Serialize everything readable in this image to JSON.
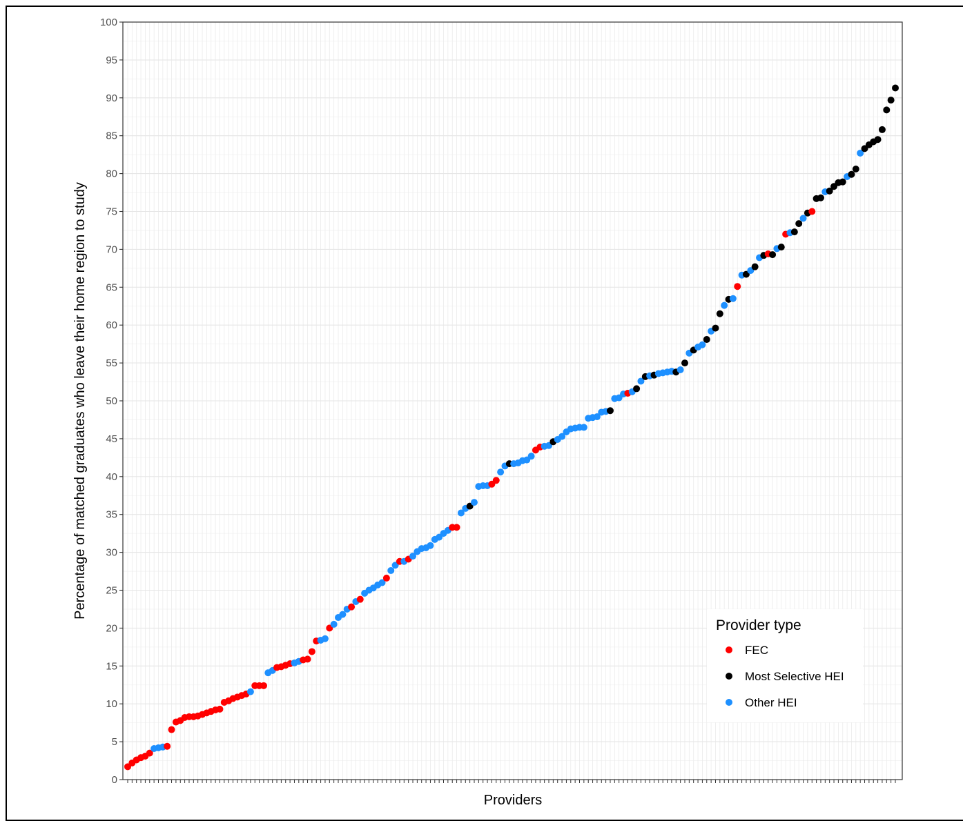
{
  "chart_data": {
    "type": "scatter",
    "title": "",
    "xlabel": "Providers",
    "ylabel": "Percentage of matched graduates who leave their home region to study",
    "ylim": [
      0,
      100
    ],
    "yticks": [
      0,
      5,
      10,
      15,
      20,
      25,
      30,
      35,
      40,
      45,
      50,
      55,
      60,
      65,
      70,
      75,
      80,
      85,
      90,
      95,
      100
    ],
    "grid": true,
    "legend": {
      "title": "Provider type",
      "position": "bottom-right",
      "entries": [
        {
          "label": "FEC",
          "color": "#ff0000"
        },
        {
          "label": "Most Selective HEI",
          "color": "#000000"
        },
        {
          "label": "Other HEI",
          "color": "#1e90ff"
        }
      ]
    },
    "series_types": [
      "FEC",
      "Most Selective HEI",
      "Other HEI"
    ],
    "points": [
      {
        "t": 0,
        "y": 1.7
      },
      {
        "t": 0,
        "y": 2.2
      },
      {
        "t": 0,
        "y": 2.6
      },
      {
        "t": 0,
        "y": 2.9
      },
      {
        "t": 0,
        "y": 3.1
      },
      {
        "t": 0,
        "y": 3.5
      },
      {
        "t": 2,
        "y": 4.1
      },
      {
        "t": 2,
        "y": 4.2
      },
      {
        "t": 2,
        "y": 4.3
      },
      {
        "t": 0,
        "y": 4.4
      },
      {
        "t": 0,
        "y": 6.6
      },
      {
        "t": 0,
        "y": 7.6
      },
      {
        "t": 0,
        "y": 7.8
      },
      {
        "t": 0,
        "y": 8.2
      },
      {
        "t": 0,
        "y": 8.3
      },
      {
        "t": 0,
        "y": 8.3
      },
      {
        "t": 0,
        "y": 8.4
      },
      {
        "t": 0,
        "y": 8.6
      },
      {
        "t": 0,
        "y": 8.8
      },
      {
        "t": 0,
        "y": 9.0
      },
      {
        "t": 0,
        "y": 9.2
      },
      {
        "t": 0,
        "y": 9.3
      },
      {
        "t": 0,
        "y": 10.2
      },
      {
        "t": 0,
        "y": 10.4
      },
      {
        "t": 0,
        "y": 10.7
      },
      {
        "t": 0,
        "y": 10.9
      },
      {
        "t": 0,
        "y": 11.1
      },
      {
        "t": 0,
        "y": 11.3
      },
      {
        "t": 2,
        "y": 11.6
      },
      {
        "t": 0,
        "y": 12.4
      },
      {
        "t": 0,
        "y": 12.4
      },
      {
        "t": 0,
        "y": 12.4
      },
      {
        "t": 2,
        "y": 14.1
      },
      {
        "t": 2,
        "y": 14.4
      },
      {
        "t": 0,
        "y": 14.8
      },
      {
        "t": 0,
        "y": 14.9
      },
      {
        "t": 0,
        "y": 15.1
      },
      {
        "t": 0,
        "y": 15.3
      },
      {
        "t": 2,
        "y": 15.4
      },
      {
        "t": 2,
        "y": 15.6
      },
      {
        "t": 0,
        "y": 15.8
      },
      {
        "t": 0,
        "y": 15.9
      },
      {
        "t": 0,
        "y": 16.9
      },
      {
        "t": 0,
        "y": 18.3
      },
      {
        "t": 2,
        "y": 18.4
      },
      {
        "t": 2,
        "y": 18.6
      },
      {
        "t": 0,
        "y": 20.0
      },
      {
        "t": 2,
        "y": 20.5
      },
      {
        "t": 2,
        "y": 21.4
      },
      {
        "t": 2,
        "y": 21.8
      },
      {
        "t": 2,
        "y": 22.5
      },
      {
        "t": 0,
        "y": 22.8
      },
      {
        "t": 2,
        "y": 23.5
      },
      {
        "t": 0,
        "y": 23.8
      },
      {
        "t": 2,
        "y": 24.6
      },
      {
        "t": 2,
        "y": 25.0
      },
      {
        "t": 2,
        "y": 25.3
      },
      {
        "t": 2,
        "y": 25.7
      },
      {
        "t": 2,
        "y": 26.0
      },
      {
        "t": 0,
        "y": 26.6
      },
      {
        "t": 2,
        "y": 27.6
      },
      {
        "t": 2,
        "y": 28.3
      },
      {
        "t": 0,
        "y": 28.8
      },
      {
        "t": 2,
        "y": 28.8
      },
      {
        "t": 0,
        "y": 29.1
      },
      {
        "t": 2,
        "y": 29.5
      },
      {
        "t": 2,
        "y": 30.1
      },
      {
        "t": 2,
        "y": 30.5
      },
      {
        "t": 2,
        "y": 30.6
      },
      {
        "t": 2,
        "y": 30.9
      },
      {
        "t": 2,
        "y": 31.7
      },
      {
        "t": 2,
        "y": 32.0
      },
      {
        "t": 2,
        "y": 32.5
      },
      {
        "t": 2,
        "y": 32.9
      },
      {
        "t": 0,
        "y": 33.3
      },
      {
        "t": 0,
        "y": 33.3
      },
      {
        "t": 2,
        "y": 35.2
      },
      {
        "t": 2,
        "y": 35.8
      },
      {
        "t": 1,
        "y": 36.1
      },
      {
        "t": 2,
        "y": 36.6
      },
      {
        "t": 2,
        "y": 38.7
      },
      {
        "t": 2,
        "y": 38.8
      },
      {
        "t": 2,
        "y": 38.8
      },
      {
        "t": 0,
        "y": 39.0
      },
      {
        "t": 0,
        "y": 39.5
      },
      {
        "t": 2,
        "y": 40.6
      },
      {
        "t": 2,
        "y": 41.4
      },
      {
        "t": 1,
        "y": 41.7
      },
      {
        "t": 2,
        "y": 41.7
      },
      {
        "t": 2,
        "y": 41.8
      },
      {
        "t": 2,
        "y": 42.1
      },
      {
        "t": 2,
        "y": 42.2
      },
      {
        "t": 2,
        "y": 42.7
      },
      {
        "t": 0,
        "y": 43.5
      },
      {
        "t": 0,
        "y": 43.9
      },
      {
        "t": 2,
        "y": 44.0
      },
      {
        "t": 2,
        "y": 44.1
      },
      {
        "t": 1,
        "y": 44.6
      },
      {
        "t": 2,
        "y": 44.9
      },
      {
        "t": 2,
        "y": 45.3
      },
      {
        "t": 2,
        "y": 45.9
      },
      {
        "t": 2,
        "y": 46.3
      },
      {
        "t": 2,
        "y": 46.4
      },
      {
        "t": 2,
        "y": 46.5
      },
      {
        "t": 2,
        "y": 46.5
      },
      {
        "t": 2,
        "y": 47.7
      },
      {
        "t": 2,
        "y": 47.8
      },
      {
        "t": 2,
        "y": 47.9
      },
      {
        "t": 2,
        "y": 48.5
      },
      {
        "t": 2,
        "y": 48.6
      },
      {
        "t": 1,
        "y": 48.7
      },
      {
        "t": 2,
        "y": 50.3
      },
      {
        "t": 2,
        "y": 50.4
      },
      {
        "t": 2,
        "y": 50.9
      },
      {
        "t": 0,
        "y": 51.0
      },
      {
        "t": 2,
        "y": 51.2
      },
      {
        "t": 1,
        "y": 51.6
      },
      {
        "t": 2,
        "y": 52.6
      },
      {
        "t": 1,
        "y": 53.2
      },
      {
        "t": 2,
        "y": 53.3
      },
      {
        "t": 1,
        "y": 53.4
      },
      {
        "t": 2,
        "y": 53.6
      },
      {
        "t": 2,
        "y": 53.7
      },
      {
        "t": 2,
        "y": 53.8
      },
      {
        "t": 2,
        "y": 53.9
      },
      {
        "t": 1,
        "y": 53.8
      },
      {
        "t": 2,
        "y": 54.1
      },
      {
        "t": 1,
        "y": 55.0
      },
      {
        "t": 2,
        "y": 56.3
      },
      {
        "t": 1,
        "y": 56.7
      },
      {
        "t": 2,
        "y": 57.1
      },
      {
        "t": 2,
        "y": 57.4
      },
      {
        "t": 1,
        "y": 58.1
      },
      {
        "t": 2,
        "y": 59.2
      },
      {
        "t": 1,
        "y": 59.6
      },
      {
        "t": 1,
        "y": 61.5
      },
      {
        "t": 2,
        "y": 62.6
      },
      {
        "t": 1,
        "y": 63.4
      },
      {
        "t": 2,
        "y": 63.5
      },
      {
        "t": 0,
        "y": 65.1
      },
      {
        "t": 2,
        "y": 66.6
      },
      {
        "t": 1,
        "y": 66.7
      },
      {
        "t": 2,
        "y": 67.2
      },
      {
        "t": 1,
        "y": 67.7
      },
      {
        "t": 2,
        "y": 68.9
      },
      {
        "t": 1,
        "y": 69.2
      },
      {
        "t": 0,
        "y": 69.4
      },
      {
        "t": 1,
        "y": 69.3
      },
      {
        "t": 2,
        "y": 70.1
      },
      {
        "t": 1,
        "y": 70.3
      },
      {
        "t": 0,
        "y": 72.0
      },
      {
        "t": 2,
        "y": 72.2
      },
      {
        "t": 1,
        "y": 72.3
      },
      {
        "t": 1,
        "y": 73.4
      },
      {
        "t": 2,
        "y": 74.1
      },
      {
        "t": 1,
        "y": 74.8
      },
      {
        "t": 0,
        "y": 75.0
      },
      {
        "t": 1,
        "y": 76.7
      },
      {
        "t": 1,
        "y": 76.8
      },
      {
        "t": 2,
        "y": 77.6
      },
      {
        "t": 1,
        "y": 77.7
      },
      {
        "t": 1,
        "y": 78.3
      },
      {
        "t": 1,
        "y": 78.8
      },
      {
        "t": 1,
        "y": 78.9
      },
      {
        "t": 2,
        "y": 79.6
      },
      {
        "t": 1,
        "y": 79.9
      },
      {
        "t": 1,
        "y": 80.6
      },
      {
        "t": 2,
        "y": 82.7
      },
      {
        "t": 1,
        "y": 83.3
      },
      {
        "t": 1,
        "y": 83.8
      },
      {
        "t": 1,
        "y": 84.2
      },
      {
        "t": 1,
        "y": 84.5
      },
      {
        "t": 1,
        "y": 85.8
      },
      {
        "t": 1,
        "y": 88.4
      },
      {
        "t": 1,
        "y": 89.7
      },
      {
        "t": 1,
        "y": 91.3
      }
    ]
  }
}
